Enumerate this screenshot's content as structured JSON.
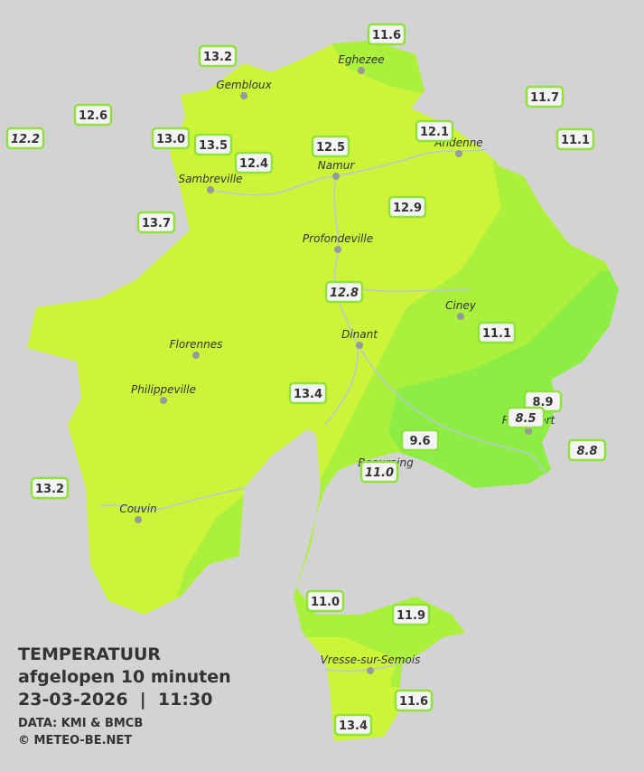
{
  "legend": {
    "heading": "TEMPERATUUR",
    "subheading": "afgelopen 10 minuten",
    "timestamp": "23-03-2026  |  11:30",
    "source": "DATA: KMI & BMCB",
    "copyright": "© METEO-BE.NET"
  },
  "towns": [
    "Eghezee",
    "Gembloux",
    "Andenne",
    "Namur",
    "Sambreville",
    "Profondeville",
    "Ciney",
    "Dinant",
    "Florennes",
    "Philippeville",
    "Couvin",
    "Vresse-sur-Semois",
    "Rochefort",
    "Beauraing"
  ],
  "stations": [
    "11.6",
    "13.2",
    "12.6",
    "11.7",
    "12.2",
    "13.0",
    "13.5",
    "12.1",
    "11.1",
    "12.5",
    "12.4",
    "13.7",
    "12.9",
    "12.8",
    "11.1",
    "13.4",
    "8.9",
    "8.5",
    "9.6",
    "8.8",
    "11.0",
    "13.2",
    "11.0",
    "11.9",
    "11.6",
    "13.4"
  ]
}
